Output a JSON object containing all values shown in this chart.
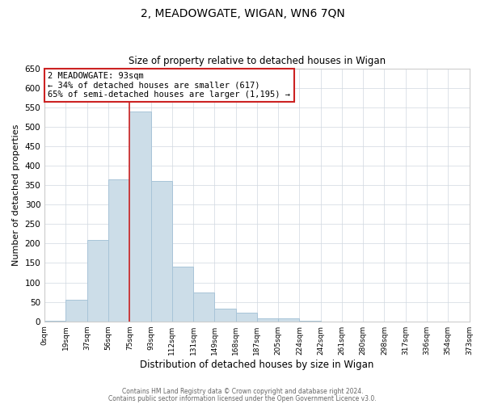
{
  "title": "2, MEADOWGATE, WIGAN, WN6 7QN",
  "subtitle": "Size of property relative to detached houses in Wigan",
  "xlabel": "Distribution of detached houses by size in Wigan",
  "ylabel": "Number of detached properties",
  "bar_color": "#ccdde8",
  "bar_edge_color": "#a8c4d8",
  "highlight_color": "#cc2222",
  "bin_labels": [
    "0sqm",
    "19sqm",
    "37sqm",
    "56sqm",
    "75sqm",
    "93sqm",
    "112sqm",
    "131sqm",
    "149sqm",
    "168sqm",
    "187sqm",
    "205sqm",
    "224sqm",
    "242sqm",
    "261sqm",
    "280sqm",
    "298sqm",
    "317sqm",
    "336sqm",
    "354sqm",
    "373sqm"
  ],
  "counts": [
    2,
    55,
    210,
    365,
    540,
    360,
    140,
    75,
    32,
    22,
    8,
    8,
    2,
    0,
    0,
    0,
    0,
    0,
    0,
    0
  ],
  "highlight_bin": 4,
  "ylim": [
    0,
    650
  ],
  "yticks": [
    0,
    50,
    100,
    150,
    200,
    250,
    300,
    350,
    400,
    450,
    500,
    550,
    600,
    650
  ],
  "annotation_title": "2 MEADOWGATE: 93sqm",
  "annotation_line1": "← 34% of detached houses are smaller (617)",
  "annotation_line2": "65% of semi-detached houses are larger (1,195) →",
  "footnote1": "Contains HM Land Registry data © Crown copyright and database right 2024.",
  "footnote2": "Contains public sector information licensed under the Open Government Licence v3.0."
}
